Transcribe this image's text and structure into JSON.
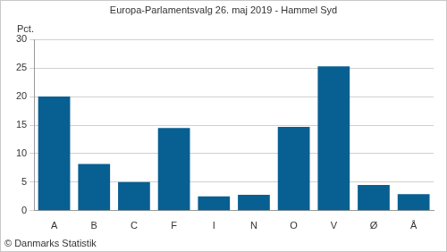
{
  "chart_data": {
    "type": "bar",
    "title": "Europa-Parlamentsvalg 26. maj 2019 - Hammel Syd",
    "ylabel": "Pct.",
    "caption": "© Danmarks Statistik",
    "categories": [
      "A",
      "B",
      "C",
      "F",
      "I",
      "N",
      "O",
      "V",
      "Ø",
      "Å"
    ],
    "values": [
      20.0,
      8.2,
      5.0,
      14.5,
      2.5,
      2.8,
      14.7,
      25.3,
      4.5,
      2.9
    ],
    "color": "#085f91",
    "ylim": [
      0,
      30
    ],
    "yticks": [
      0,
      5,
      10,
      15,
      20,
      25,
      30
    ],
    "grid": true
  }
}
